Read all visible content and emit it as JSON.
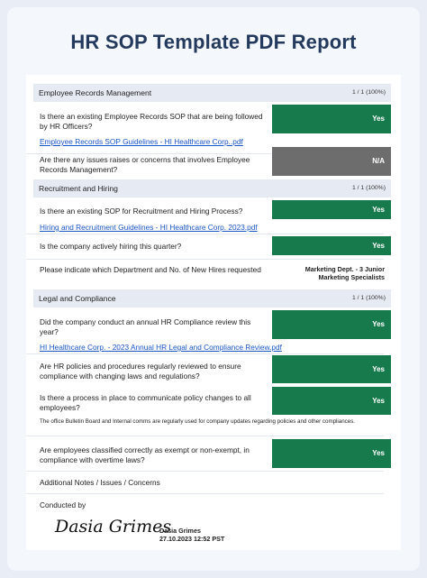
{
  "title": "HR SOP Template PDF Report",
  "sections": [
    {
      "name": "Employee Records Management",
      "score": "1 / 1 (100%)"
    },
    {
      "name": "Recruitment and Hiring",
      "score": "1 / 1 (100%)"
    },
    {
      "name": "Legal and Compliance",
      "score": "1 / 1 (100%)"
    }
  ],
  "items": {
    "q1": "Is there an existing Employee Records SOP that are being followed by HR Officers?",
    "q1_answer": "Yes",
    "q1_link": "Employee Records SOP Guidelines - HI Healthcare Corp..pdf",
    "q2": "Are there any issues raises or concerns that involves Employee Records Management?",
    "q2_answer": "N/A",
    "q3": "Is there an existing SOP for Recruitment and Hiring Process?",
    "q3_answer": "Yes",
    "q3_link": "Hiring and Recruitment Guidelines - HI Healthcare Corp. 2023.pdf",
    "q4": "Is the company actively hiring this quarter?",
    "q4_answer": "Yes",
    "q5": "Please indicate which Department and No. of New Hires requested",
    "q5_answer_line1": "Marketing Dept. - 3 Junior",
    "q5_answer_line2": "Marketing Specialists",
    "q6": "Did the company conduct an annual HR Compliance review this year?",
    "q6_answer": "Yes",
    "q6_link": "HI Healthcare Corp. - 2023 Annual HR Legal and Compliance Review.pdf",
    "q7": "Are HR policies and procedures regularly reviewed to ensure compliance with changing laws and regulations?",
    "q7_answer": "Yes",
    "q8": "Is there a process in place to communicate policy changes to all employees?",
    "q8_answer": "Yes",
    "q8_note": "The office Bulletin Board and Internal comms are regularly used for company updates regarding policies and other compliances.",
    "q9": "Are employees classified correctly as exempt or non-exempt, in compliance with overtime laws?",
    "q9_answer": "Yes"
  },
  "notes_label": "Additional Notes / Issues / Concerns",
  "conducted_by_label": "Conducted by",
  "signature": {
    "handwritten": "Dasia Grimes",
    "name": "Dasia Grimes",
    "datetime": "27.10.2023 12:52 PST"
  },
  "colors": {
    "yes": "#177a4d",
    "na": "#6d6d6d",
    "title": "#233a5e",
    "link": "#1a55c5"
  }
}
